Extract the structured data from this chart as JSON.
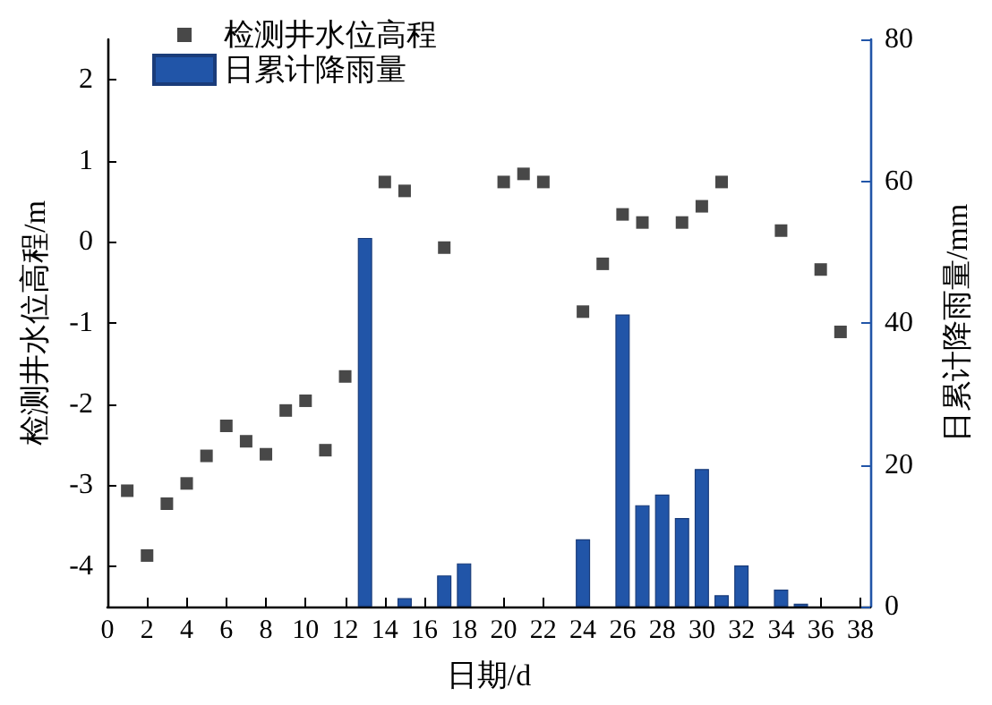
{
  "chart_data": {
    "type": "scatter",
    "xlabel": "日期/d",
    "ylabel": "检测井水位高程/m",
    "y2label": "日累计降雨量/mm",
    "xlim": [
      0,
      38.5
    ],
    "xticks": [
      0,
      2,
      4,
      6,
      8,
      10,
      12,
      14,
      16,
      18,
      20,
      22,
      24,
      26,
      28,
      30,
      32,
      34,
      36,
      38
    ],
    "ylim": [
      -4.5,
      2.5
    ],
    "yticks": [
      -4,
      -3,
      -2,
      -1,
      0,
      1,
      2
    ],
    "y2lim": [
      0,
      80
    ],
    "y2ticks": [
      0,
      20,
      40,
      60,
      80
    ],
    "grid": false,
    "legend": "top left",
    "marker": "square",
    "series": [
      {
        "name": "检测井水位高程",
        "color": "#1a1a1a",
        "x": [
          1,
          2,
          3,
          4,
          5,
          6,
          7,
          8,
          9,
          10,
          11,
          12,
          14,
          15,
          17,
          20,
          21,
          22,
          24,
          25,
          26,
          27,
          29,
          30,
          31,
          34,
          36,
          37
        ],
        "values": [
          -3.07,
          -3.87,
          -3.23,
          -2.98,
          -2.64,
          -2.27,
          -2.46,
          -2.62,
          -2.08,
          -1.96,
          -2.57,
          -1.66,
          0.74,
          0.63,
          -0.07,
          0.74,
          0.84,
          0.74,
          -0.86,
          -0.27,
          0.34,
          0.24,
          0.24,
          0.44,
          0.74,
          0.14,
          -0.34,
          -1.11
        ]
      },
      {
        "name": "日累计降雨量",
        "type": "bar",
        "axis": "y2",
        "color": "#2155a8",
        "x": [
          13,
          15,
          17,
          18,
          24,
          26,
          27,
          28,
          29,
          30,
          31,
          32,
          34,
          35
        ],
        "values": [
          52,
          1.2,
          4.4,
          6.1,
          9.5,
          41.2,
          14.3,
          15.8,
          12.5,
          19.4,
          1.6,
          5.8,
          2.4,
          0.4
        ]
      }
    ]
  }
}
